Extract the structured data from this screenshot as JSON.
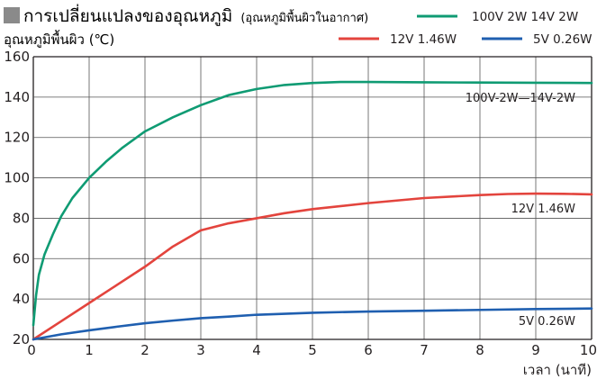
{
  "chart_data": {
    "type": "line",
    "title": "การเปลี่ยนแปลงของอุณหภูมิ",
    "subtitle": "(อุณหภูมิพื้นผิวในอากาศ)",
    "ylabel": "อุณหภูมิพื้นผิว (℃)",
    "xlabel": "เวลา (นาที)",
    "xlim": [
      0,
      10
    ],
    "ylim": [
      20,
      160
    ],
    "xticks": [
      "0",
      "1",
      "2",
      "3",
      "4",
      "5",
      "6",
      "7",
      "8",
      "9",
      "10"
    ],
    "yticks": [
      "20",
      "40",
      "60",
      "80",
      "100",
      "120",
      "140",
      "160"
    ],
    "grid": true,
    "legend_position": "top-right",
    "series": [
      {
        "name": "100V 2W  14V 2W",
        "color": "#0f9b73",
        "annotation": "100V-2W—14V-2W",
        "points": [
          [
            0,
            27
          ],
          [
            0.05,
            42
          ],
          [
            0.1,
            52
          ],
          [
            0.2,
            62
          ],
          [
            0.35,
            72
          ],
          [
            0.5,
            81
          ],
          [
            0.7,
            90
          ],
          [
            1,
            100
          ],
          [
            1.3,
            108
          ],
          [
            1.6,
            115
          ],
          [
            2,
            123
          ],
          [
            2.5,
            130
          ],
          [
            3,
            136
          ],
          [
            3.5,
            141
          ],
          [
            4,
            144
          ],
          [
            4.5,
            146
          ],
          [
            5,
            147
          ],
          [
            5.5,
            147.5
          ],
          [
            6,
            147.5
          ],
          [
            7,
            147.3
          ],
          [
            8,
            147.2
          ],
          [
            9,
            147.1
          ],
          [
            10,
            147
          ]
        ]
      },
      {
        "name": "12V 1.46W",
        "color": "#e3443d",
        "annotation": "12V 1.46W",
        "points": [
          [
            0,
            20
          ],
          [
            0.5,
            29
          ],
          [
            1,
            38
          ],
          [
            1.5,
            47
          ],
          [
            2,
            56
          ],
          [
            2.5,
            66
          ],
          [
            3,
            74
          ],
          [
            3.5,
            77.5
          ],
          [
            4,
            80
          ],
          [
            4.5,
            82.5
          ],
          [
            5,
            84.5
          ],
          [
            6,
            87.5
          ],
          [
            7,
            90
          ],
          [
            8,
            91.5
          ],
          [
            8.5,
            92
          ],
          [
            9,
            92.2
          ],
          [
            9.5,
            92.1
          ],
          [
            10,
            91.8
          ]
        ]
      },
      {
        "name": "5V 0.26W",
        "color": "#1f5fb0",
        "annotation": "5V 0.26W",
        "points": [
          [
            0,
            20
          ],
          [
            0.5,
            22.5
          ],
          [
            1,
            24.5
          ],
          [
            1.5,
            26.3
          ],
          [
            2,
            28
          ],
          [
            2.5,
            29.3
          ],
          [
            3,
            30.5
          ],
          [
            3.5,
            31.3
          ],
          [
            4,
            32.2
          ],
          [
            5,
            33.2
          ],
          [
            6,
            33.8
          ],
          [
            7,
            34.2
          ],
          [
            8,
            34.6
          ],
          [
            9,
            35
          ],
          [
            10,
            35.3
          ]
        ]
      }
    ]
  }
}
